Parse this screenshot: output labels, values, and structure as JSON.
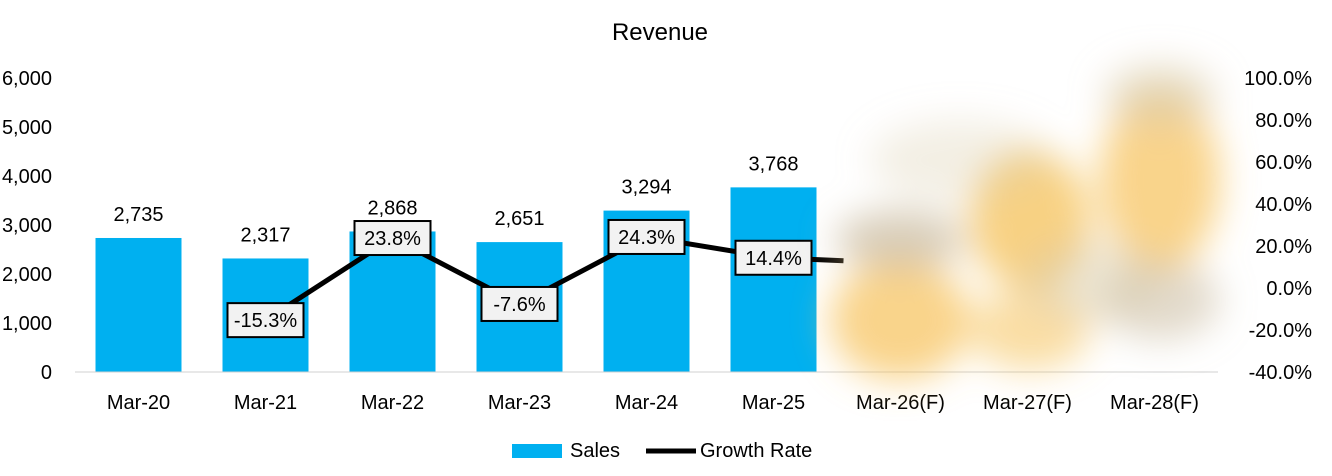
{
  "chart_data": {
    "type": "bar",
    "title": "Revenue",
    "categories": [
      "Mar-20",
      "Mar-21",
      "Mar-22",
      "Mar-23",
      "Mar-24",
      "Mar-25",
      "Mar-26(F)",
      "Mar-27(F)",
      "Mar-28(F)"
    ],
    "series": [
      {
        "name": "Sales",
        "type": "bar",
        "axis": "left",
        "color": "#00B0F0",
        "values": [
          2735,
          2317,
          2868,
          2651,
          3294,
          3768,
          null,
          null,
          null
        ],
        "labels": [
          "2,735",
          "2,317",
          "2,868",
          "2,651",
          "3,294",
          "3,768",
          null,
          null,
          null
        ]
      },
      {
        "name": "Growth Rate",
        "type": "line",
        "axis": "right",
        "color": "#000000",
        "values": [
          null,
          -15.3,
          23.8,
          -7.6,
          24.3,
          14.4,
          null,
          null,
          null
        ],
        "labels": [
          null,
          "-15.3%",
          "23.8%",
          "-7.6%",
          "24.3%",
          "14.4%",
          null,
          null,
          null
        ]
      }
    ],
    "y_left": {
      "min": 0,
      "max": 6000,
      "ticks": [
        "0",
        "1,000",
        "2,000",
        "3,000",
        "4,000",
        "5,000",
        "6,000"
      ]
    },
    "y_right": {
      "min": -40,
      "max": 100,
      "ticks": [
        "-40.0%",
        "-20.0%",
        "0.0%",
        "20.0%",
        "40.0%",
        "60.0%",
        "80.0%",
        "100.0%"
      ]
    },
    "legend": {
      "position": "bottom",
      "entries": [
        "Sales",
        "Growth Rate"
      ]
    },
    "grid": false,
    "obscured_region": {
      "note": "forecast area covered by blur",
      "colors": [
        "#F6C25A",
        "#D8C9A6",
        "#BFAE8C"
      ]
    }
  }
}
